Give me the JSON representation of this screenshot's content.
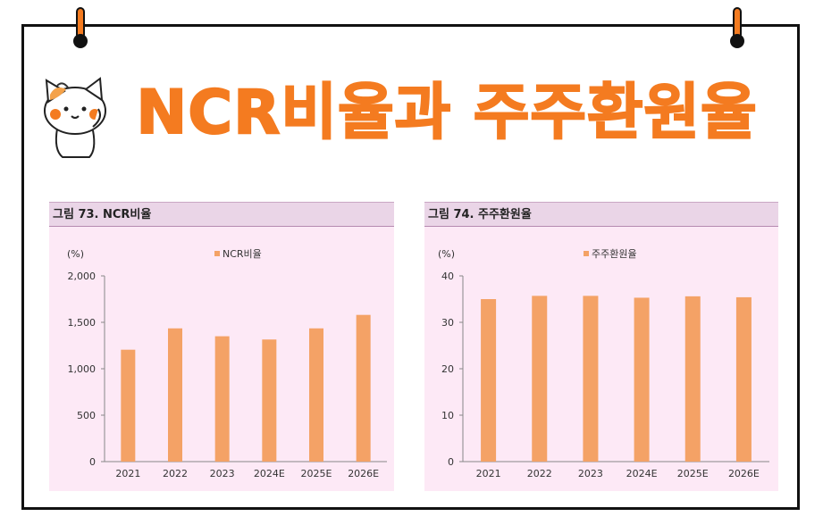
{
  "page": {
    "title": "NCR비율과 주주환원율",
    "colors": {
      "title": "#f47b20",
      "bar": "#f4a266",
      "frame": "#111111",
      "panel_bg": "#fde9f6",
      "panel_header_bg": "#ead5e7"
    },
    "icons": [
      "binder-pin-icon",
      "binder-pin-icon",
      "cat-mascot-icon"
    ]
  },
  "chart_data": [
    {
      "type": "bar",
      "title": "그림 73. NCR비율",
      "unit": "(%)",
      "categories": [
        "2021",
        "2022",
        "2023",
        "2024E",
        "2025E",
        "2026E"
      ],
      "series": [
        {
          "name": "NCR비율",
          "values": [
            1205,
            1435,
            1350,
            1315,
            1435,
            1580
          ]
        }
      ],
      "ylim": [
        0,
        2000
      ],
      "yticks": [
        0,
        500,
        1000,
        1500,
        2000
      ],
      "ytick_labels": [
        "0",
        "500",
        "1,000",
        "1,500",
        "2,000"
      ],
      "legend": "top-center",
      "grid": false
    },
    {
      "type": "bar",
      "title": "그림 74. 주주환원율",
      "unit": "(%)",
      "categories": [
        "2021",
        "2022",
        "2023",
        "2024E",
        "2025E",
        "2026E"
      ],
      "series": [
        {
          "name": "주주환원율",
          "values": [
            35.0,
            35.7,
            35.7,
            35.3,
            35.6,
            35.4
          ]
        }
      ],
      "ylim": [
        0,
        40
      ],
      "yticks": [
        0,
        10,
        20,
        30,
        40
      ],
      "ytick_labels": [
        "0",
        "10",
        "20",
        "30",
        "40"
      ],
      "legend": "top-center",
      "grid": false
    }
  ]
}
